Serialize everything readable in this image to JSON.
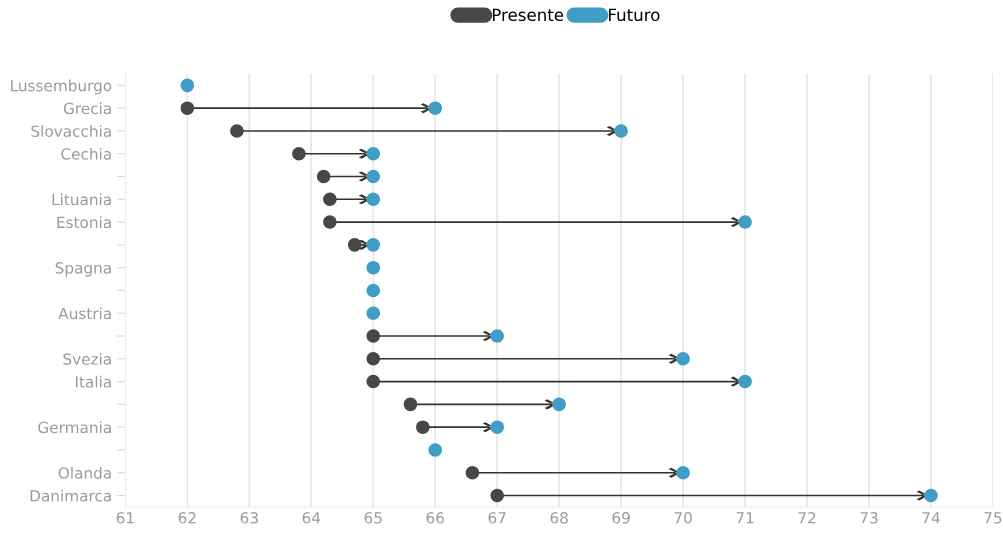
{
  "chart_data": {
    "type": "scatter",
    "orientation": "horizontal",
    "categories": [
      "Lussemburgo",
      "Grecia",
      "Slovacchia",
      "Cechia",
      null,
      "Lituania",
      "Estonia",
      null,
      "Spagna",
      null,
      "Austria",
      null,
      "Svezia",
      "Italia",
      null,
      "Germania",
      null,
      "Olanda",
      "Danimarca"
    ],
    "series": [
      {
        "name": "Presente",
        "color": "#474747",
        "values": [
          null,
          62,
          62.8,
          63.8,
          64.2,
          64.3,
          64.3,
          64.7,
          null,
          null,
          null,
          65,
          65,
          65,
          65.6,
          65.8,
          null,
          66.6,
          67
        ]
      },
      {
        "name": "Futuro",
        "color": "#3f9dc6",
        "values": [
          62,
          66,
          69,
          65,
          65,
          65,
          71,
          65,
          65,
          65,
          65,
          67,
          70,
          71,
          68,
          67,
          66,
          70,
          74
        ]
      }
    ],
    "xlim": [
      61,
      75
    ],
    "xticks": [
      61,
      62,
      63,
      64,
      65,
      66,
      67,
      68,
      69,
      70,
      71,
      72,
      73,
      74,
      75
    ],
    "grid": "x",
    "legend": "top",
    "marker": "circle"
  }
}
